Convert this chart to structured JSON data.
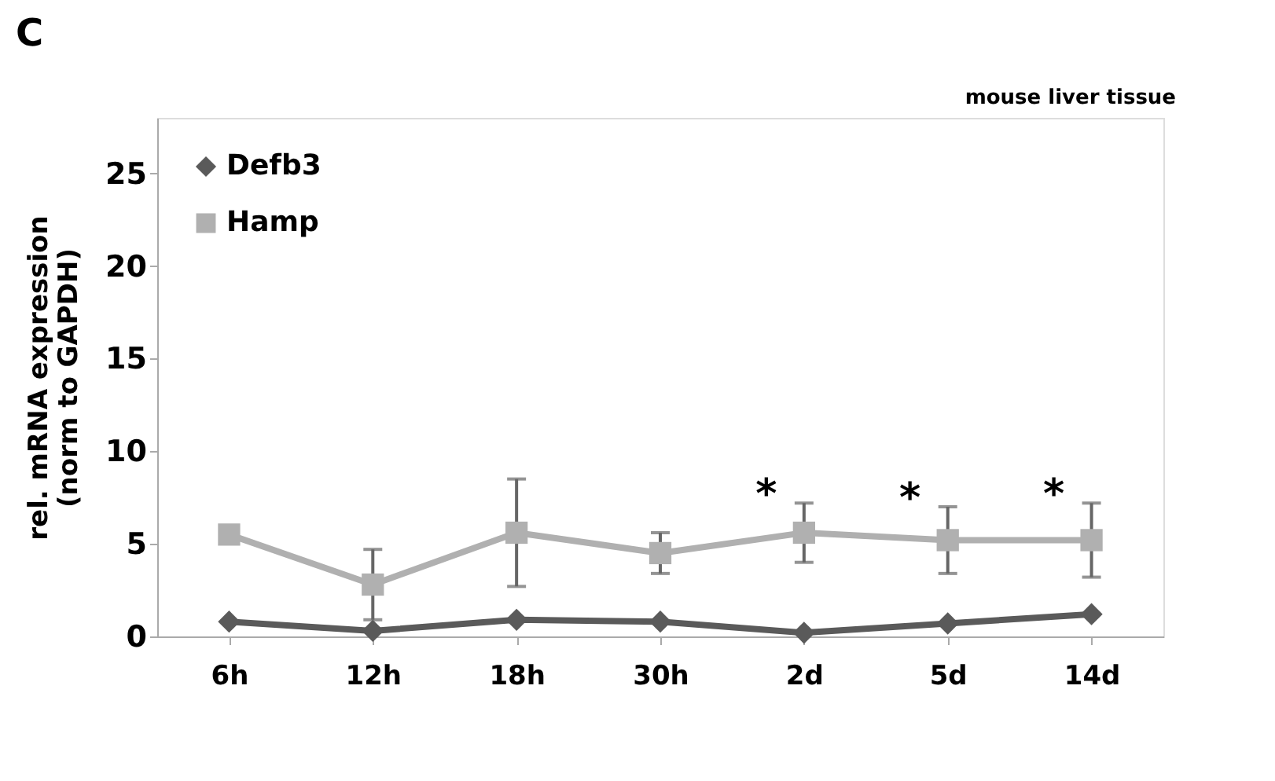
{
  "chart_data": {
    "type": "line",
    "title": "C",
    "subtitle": "mouse liver tissue",
    "ylabel": "rel. mRNA expression\n(norm to GAPDH)",
    "categories": [
      "6h",
      "12h",
      "18h",
      "30h",
      "2d",
      "5d",
      "14d"
    ],
    "series": [
      {
        "name": "Defb3",
        "color": "#5a5a5a",
        "marker": "diamond",
        "values": [
          0.8,
          0.3,
          0.9,
          0.8,
          0.2,
          0.7,
          1.2
        ]
      },
      {
        "name": "Hamp",
        "color": "#b0b0b0",
        "marker": "square",
        "values": [
          5.5,
          2.8,
          5.6,
          4.5,
          5.6,
          5.2,
          5.2
        ],
        "errors": [
          null,
          1.9,
          2.9,
          1.1,
          1.6,
          1.8,
          2.0
        ]
      }
    ],
    "annotations": [
      {
        "text": "*",
        "x": "2d",
        "y": 7.2
      },
      {
        "text": "*",
        "x": "5d",
        "y": 7.0
      },
      {
        "text": "*",
        "x": "14d",
        "y": 7.2
      }
    ],
    "ylim": [
      0,
      28
    ],
    "yticks": [
      0,
      5,
      10,
      15,
      20,
      25
    ],
    "grid": false,
    "legend": "top left",
    "line_style": "solid"
  }
}
